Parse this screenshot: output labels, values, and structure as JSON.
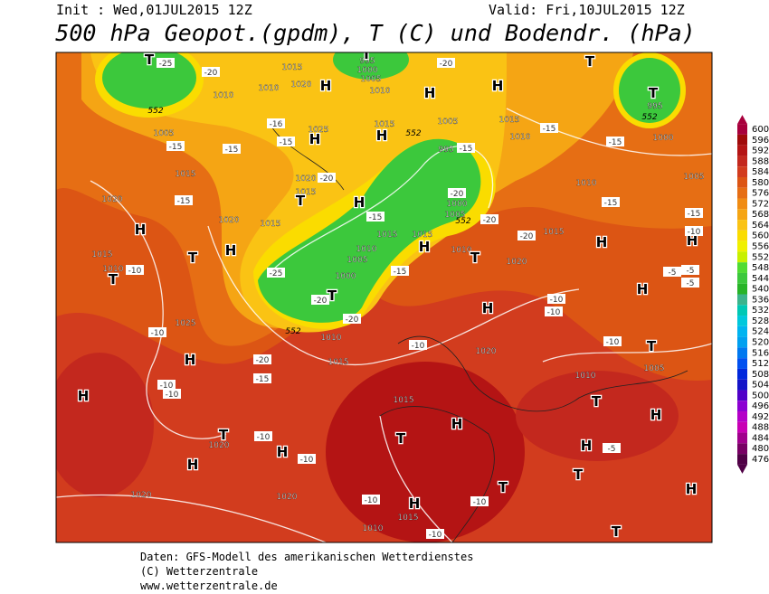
{
  "header": {
    "init": "Init : Wed,01JUL2015 12Z",
    "valid": "Valid: Fri,10JUL2015 12Z",
    "title": "500 hPa Geopot.(gpdm), T (C) und Bodendr. (hPa)"
  },
  "colorbar": {
    "labels": [
      600,
      596,
      592,
      588,
      584,
      580,
      576,
      572,
      568,
      564,
      560,
      556,
      552,
      548,
      544,
      540,
      536,
      532,
      528,
      524,
      520,
      516,
      512,
      508,
      504,
      500,
      496,
      492,
      488,
      484,
      480,
      476
    ],
    "colors": [
      "#a8003c",
      "#a00a0a",
      "#b41414",
      "#c3281e",
      "#d23c1e",
      "#dc5514",
      "#e66e14",
      "#f08c14",
      "#f5a514",
      "#fac314",
      "#fadc00",
      "#f0f000",
      "#c8f000",
      "#50dc32",
      "#3cc83c",
      "#28b428",
      "#3cb48c",
      "#00c8b4",
      "#00c8dc",
      "#00b4f0",
      "#00a0f0",
      "#0078f0",
      "#0050f0",
      "#0028dc",
      "#1414c8",
      "#5000c8",
      "#8c00d2",
      "#b400c8",
      "#c800b4",
      "#a0008c",
      "#780064",
      "#500046"
    ]
  },
  "map": {
    "labels": [
      "T",
      "-25",
      "-20",
      "1010",
      "1010",
      "1015",
      "1020",
      "H",
      "995",
      "1000",
      "1005",
      "1010",
      "T",
      "-20",
      "H",
      "H",
      "T",
      "T",
      "995",
      "552",
      "1000",
      "1005",
      "552",
      "-15",
      "-15",
      "-16",
      "-15",
      "H",
      "1025",
      "1015",
      "H",
      "552",
      "1005",
      "1015",
      "1010",
      "-15",
      "-15",
      "995",
      "-15",
      "1015",
      "-20",
      "1020",
      "1015",
      "T",
      "H",
      "-20",
      "1000",
      "1005",
      "552",
      "-20",
      "1010",
      "1005",
      "-15",
      "-15",
      "1020",
      "H",
      "-15",
      "1020",
      "1015",
      "-15",
      "1015",
      "1015",
      "H",
      "1010",
      "-20",
      "1015",
      "H",
      "H",
      "-10",
      "1015",
      "1010",
      "-10",
      "T",
      "T",
      "H",
      "-25",
      "1000",
      "1005",
      "1010",
      "T",
      "-20",
      "-20",
      "-15",
      "1020",
      "T",
      "-5",
      "-5",
      "-5",
      "1025",
      "-10",
      "552",
      "1010",
      "H",
      "-10",
      "-10",
      "H",
      "-10",
      "1020",
      "T",
      "-10",
      "H",
      "-20",
      "1015",
      "1010",
      "1005",
      "-10",
      "-10",
      "-15",
      "H",
      "1015",
      "T",
      "H",
      "T",
      "-10",
      "1020",
      "H",
      "-10",
      "T",
      "H",
      "H",
      "-5",
      "H",
      "T",
      "T",
      "H",
      "1020",
      "1020",
      "-10",
      "H",
      "-10",
      "1015",
      "1010",
      "T",
      "-10"
    ]
  },
  "footer": {
    "line1": "Daten: GFS-Modell des amerikanischen Wetterdienstes",
    "line2": "(C) Wetterzentrale",
    "line3": "www.wetterzentrale.de"
  }
}
